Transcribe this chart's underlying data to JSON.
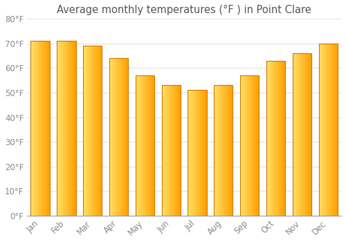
{
  "title": "Average monthly temperatures (°F ) in Point Clare",
  "months": [
    "Jan",
    "Feb",
    "Mar",
    "Apr",
    "May",
    "Jun",
    "Jul",
    "Aug",
    "Sep",
    "Oct",
    "Nov",
    "Dec"
  ],
  "values": [
    71,
    71,
    69,
    64,
    57,
    53,
    51,
    53,
    57,
    63,
    66,
    70
  ],
  "bar_color_left": "#FFE066",
  "bar_color_right": "#FFA000",
  "bar_edge_color": "#CC7700",
  "ylim": [
    0,
    80
  ],
  "ytick_step": 10,
  "background_color": "#FFFFFF",
  "grid_color": "#DDDDDD",
  "title_fontsize": 10.5,
  "tick_fontsize": 8.5,
  "tick_color": "#888888",
  "title_color": "#555555"
}
